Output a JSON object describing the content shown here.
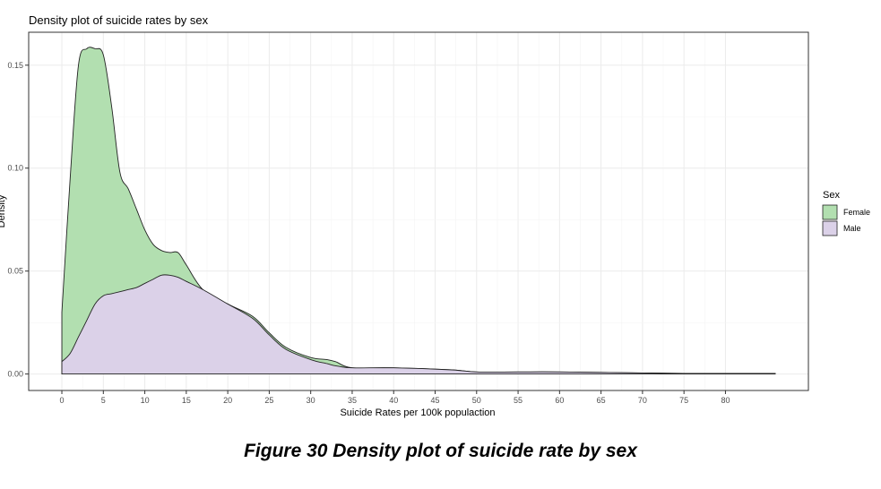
{
  "caption": "Figure 30 Density plot of suicide rate by sex",
  "chart_data": {
    "type": "area",
    "title": "Density plot of suicide rates by sex",
    "xlabel": "Suicide Rates per 100k populaction",
    "ylabel": "Density",
    "xlim": [
      -4,
      90
    ],
    "ylim": [
      -0.008,
      0.166
    ],
    "x_ticks": [
      0,
      5,
      10,
      15,
      20,
      25,
      30,
      35,
      40,
      45,
      50,
      55,
      60,
      65,
      70,
      75,
      80
    ],
    "y_ticks": [
      0.0,
      0.05,
      0.1,
      0.15
    ],
    "y_tick_labels": [
      "0.00",
      "0.05",
      "0.10",
      "0.15"
    ],
    "grid": true,
    "legend_title": "Sex",
    "legend_position": "right",
    "series": [
      {
        "name": "Female",
        "color": "#b2dfb0",
        "x": [
          0,
          1,
          2,
          3,
          4,
          5,
          6,
          7,
          8,
          9,
          10,
          11,
          12,
          13,
          14,
          15,
          17,
          20,
          23,
          25,
          27,
          30,
          32,
          33,
          35,
          40,
          47,
          50,
          55,
          60,
          70,
          75,
          80,
          86
        ],
        "y": [
          0.03,
          0.095,
          0.15,
          0.158,
          0.158,
          0.155,
          0.13,
          0.098,
          0.09,
          0.08,
          0.07,
          0.063,
          0.06,
          0.059,
          0.059,
          0.053,
          0.041,
          0.034,
          0.028,
          0.02,
          0.013,
          0.008,
          0.007,
          0.006,
          0.003,
          0.003,
          0.002,
          0.001,
          0.001,
          0.001,
          0.0005,
          0.0003,
          0.0003,
          0.0003
        ]
      },
      {
        "name": "Male",
        "color": "#dbd1e8",
        "x": [
          0,
          1,
          2,
          3,
          4,
          5,
          6,
          7,
          8,
          9,
          10,
          11,
          12,
          13,
          14,
          15,
          17,
          20,
          23,
          25,
          27,
          30,
          32,
          33,
          35,
          40,
          47,
          50,
          55,
          60,
          70,
          75,
          80,
          86
        ],
        "y": [
          0.006,
          0.01,
          0.018,
          0.026,
          0.034,
          0.038,
          0.039,
          0.04,
          0.041,
          0.042,
          0.044,
          0.046,
          0.048,
          0.048,
          0.047,
          0.045,
          0.041,
          0.034,
          0.027,
          0.019,
          0.012,
          0.007,
          0.005,
          0.004,
          0.003,
          0.003,
          0.002,
          0.001,
          0.001,
          0.001,
          0.0005,
          0.0003,
          0.0003,
          0.0003
        ]
      }
    ]
  }
}
